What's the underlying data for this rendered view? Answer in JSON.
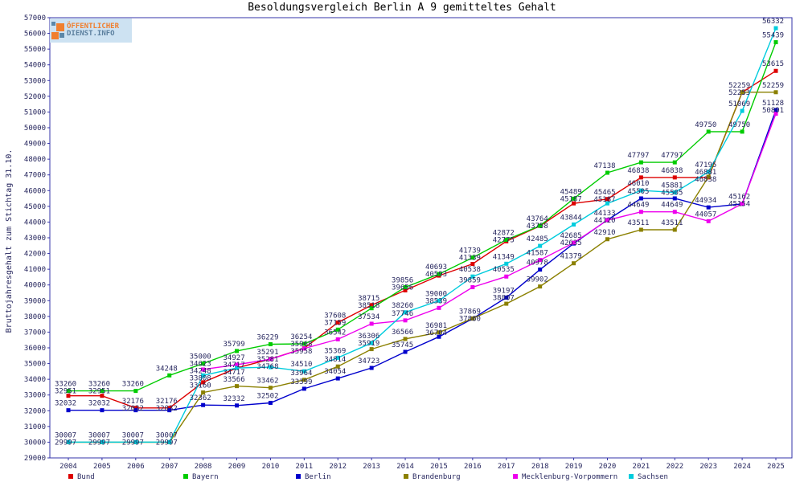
{
  "title": "Besoldungsvergleich Berlin A 9 gemitteltes Gehalt",
  "logo": {
    "line1": "ÖFFENTLICHER",
    "line2": "DIENST.INFO"
  },
  "chart_data": {
    "type": "line",
    "title": "Besoldungsvergleich Berlin A 9 gemitteltes Gehalt",
    "xlabel": "",
    "ylabel": "Bruttojahresgehalt zum Stichtag 31.10.",
    "ylim": [
      29000,
      57000
    ],
    "ytick_step": 1000,
    "grid": false,
    "legend_position": "bottom",
    "point_labels": true,
    "categories": [
      "2004",
      "2005",
      "2006",
      "2007",
      "2008",
      "2009",
      "2010",
      "2011",
      "2012",
      "2013",
      "2014",
      "2015",
      "2016",
      "2017",
      "2018",
      "2019",
      "2020",
      "2021",
      "2022",
      "2023",
      "2024",
      "2025"
    ],
    "series": [
      {
        "name": "Bund",
        "color": "#dd0000",
        "values": [
          32951,
          32951,
          32176,
          32176,
          33808,
          34717,
          35291,
          35968,
          37608,
          38715,
          39656,
          40593,
          41339,
          42775,
          43758,
          45187,
          45465,
          46838,
          46838,
          46838,
          52253,
          53615
        ]
      },
      {
        "name": "Bayern",
        "color": "#00cc00",
        "values": [
          33260,
          33260,
          33260,
          34248,
          35000,
          35799,
          36229,
          36254,
          37159,
          38518,
          39856,
          40693,
          41739,
          42872,
          43764,
          45489,
          47138,
          47797,
          47797,
          49750,
          49750,
          55439
        ]
      },
      {
        "name": "Berlin",
        "color": "#0000cc",
        "values": [
          32032,
          32032,
          32032,
          32032,
          32362,
          32332,
          32502,
          33399,
          34054,
          34723,
          35745,
          36704,
          37860,
          39197,
          40978,
          42635,
          44133,
          45505,
          45505,
          44934,
          45154,
          51128
        ]
      },
      {
        "name": "Brandenburg",
        "color": "#8b8000",
        "values": [
          29997,
          29997,
          29997,
          29997,
          33160,
          33566,
          33462,
          33964,
          34814,
          35919,
          36566,
          36981,
          37869,
          38807,
          39902,
          41379,
          42910,
          43511,
          43511,
          46881,
          52259,
          52259
        ]
      },
      {
        "name": "Mecklenburg-Vorpommern",
        "color": "#ee00ee",
        "values": [
          null,
          null,
          null,
          null,
          34623,
          34927,
          35281,
          35958,
          36542,
          37534,
          37746,
          38539,
          39859,
          40535,
          41587,
          42685,
          44120,
          44649,
          44649,
          44057,
          45162,
          50891
        ]
      },
      {
        "name": "Sachsen",
        "color": "#00ccdd",
        "values": [
          30007,
          30007,
          30007,
          30007,
          34248,
          34717,
          34768,
          34510,
          35369,
          36306,
          38260,
          39000,
          40538,
          41349,
          42485,
          43844,
          45187,
          46010,
          45881,
          47195,
          51069,
          56332
        ]
      }
    ]
  },
  "style": {
    "frame_color": "#3333aa",
    "label_color": "#26265e",
    "title_color": "#000000",
    "background": "#ffffff"
  }
}
